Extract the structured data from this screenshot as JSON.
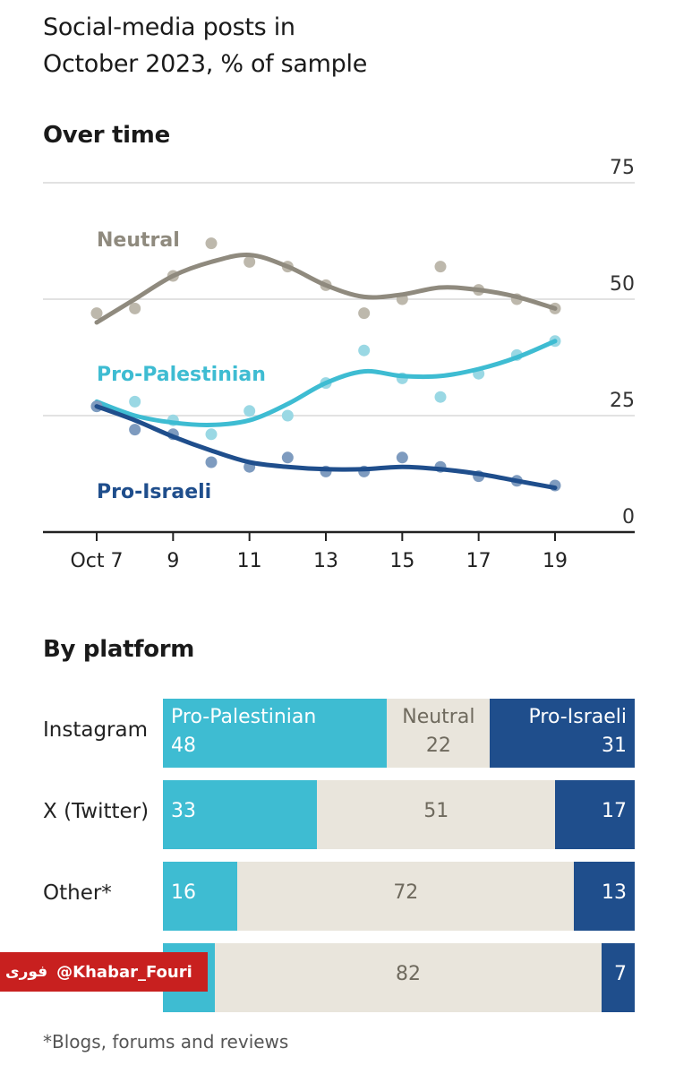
{
  "title_line1": "Social-media posts in",
  "title_line2": "October 2023, % of sample",
  "section_over_time": "Over time",
  "section_by_platform": "By platform",
  "footnote": "*Blogs, forums and reviews",
  "watermark": {
    "handle": "@Khabar_Fouri",
    "logo_text": "فوری"
  },
  "colors": {
    "neutral": "#8f8a7e",
    "neutral_dot": "#bdb8ac",
    "pro_palestinian": "#3ebcd2",
    "pro_palestinian_dot": "#9ad8e4",
    "pro_israeli": "#1f4e8c",
    "pro_israeli_dot": "#7e9bbf",
    "neutral_bar": "#e9e5dc",
    "gridline": "#d9d9d9",
    "watermark": "#c8201f"
  },
  "chart_data": [
    {
      "type": "line",
      "title": "Over time",
      "x": [
        7,
        8,
        9,
        10,
        11,
        12,
        13,
        14,
        15,
        16,
        17,
        18,
        19
      ],
      "xtick_labels": [
        "Oct 7",
        "9",
        "11",
        "13",
        "15",
        "17",
        "19"
      ],
      "xticks": [
        7,
        9,
        11,
        13,
        15,
        17,
        19
      ],
      "ylim": [
        0,
        75
      ],
      "yticks": [
        0,
        25,
        50,
        75
      ],
      "grid": true,
      "series": [
        {
          "name": "Neutral",
          "label": "Neutral",
          "color": "#8f8a7e",
          "points": [
            47,
            48,
            55,
            62,
            58,
            57,
            53,
            47,
            50,
            57,
            52,
            50,
            48
          ],
          "trend": [
            45,
            50,
            55,
            58,
            59.5,
            57,
            53,
            50.5,
            51,
            52.5,
            52,
            50.5,
            48
          ]
        },
        {
          "name": "Pro-Palestinian",
          "label": "Pro-Palestinian",
          "color": "#3ebcd2",
          "points": [
            27,
            28,
            24,
            21,
            26,
            25,
            32,
            39,
            33,
            29,
            34,
            38,
            41
          ],
          "trend": [
            28,
            25,
            23.5,
            23,
            24,
            27.5,
            32,
            34.5,
            33.5,
            33.5,
            35,
            37.5,
            41
          ]
        },
        {
          "name": "Pro-Israeli",
          "label": "Pro-Israeli",
          "color": "#1f4e8c",
          "points": [
            27,
            22,
            21,
            15,
            14,
            16,
            13,
            13,
            16,
            14,
            12,
            11,
            10
          ],
          "trend": [
            27,
            24,
            20.5,
            17.5,
            15,
            14,
            13.5,
            13.5,
            14,
            13.5,
            12.5,
            11,
            9.5
          ]
        }
      ]
    },
    {
      "type": "bar",
      "stacked": true,
      "orientation": "horizontal",
      "title": "By platform",
      "categories": [
        "Instagram",
        "X (Twitter)",
        "Other*",
        ""
      ],
      "series": [
        {
          "name": "Pro-Palestinian",
          "values": [
            48,
            33,
            16,
            11
          ]
        },
        {
          "name": "Neutral",
          "values": [
            22,
            51,
            72,
            82
          ]
        },
        {
          "name": "Pro-Israeli",
          "values": [
            31,
            17,
            13,
            7
          ]
        }
      ],
      "series_labels": [
        "Pro-Palestinian",
        "Neutral",
        "Pro-Israeli"
      ],
      "value_labels": [
        [
          "48",
          "22",
          "31"
        ],
        [
          "33",
          "51",
          "17"
        ],
        [
          "16",
          "72",
          "13"
        ],
        [
          "",
          "82",
          "7"
        ]
      ]
    }
  ]
}
